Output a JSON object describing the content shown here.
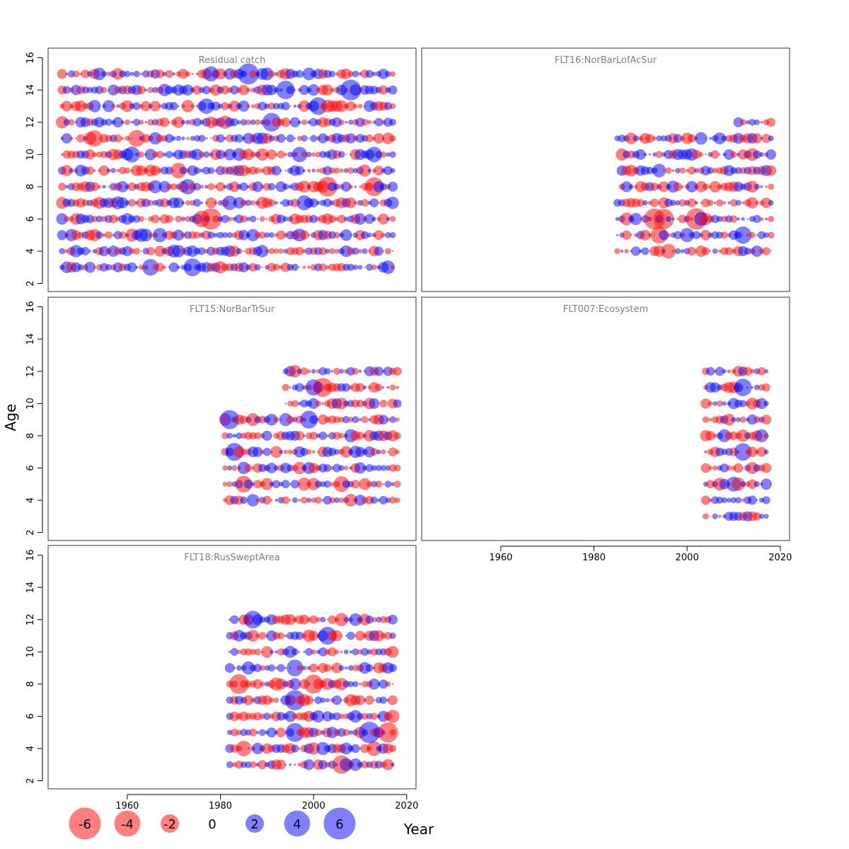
{
  "colors": {
    "positive": "#0000ff",
    "negative": "#ff0000",
    "bubble_opacity": 0.5,
    "panel_title": "#808080"
  },
  "chart_data": {
    "type": "scatter",
    "subtype": "bubble",
    "xlabel": "Year",
    "ylabel": "Age",
    "xlim": [
      1943,
      2022
    ],
    "ylim": [
      1.5,
      16.6
    ],
    "x_ticks": [
      1960,
      1980,
      2000,
      2020
    ],
    "y_ticks": [
      2,
      4,
      6,
      8,
      10,
      12,
      14,
      16
    ],
    "grid": false,
    "legend": {
      "placement": "bottom-left",
      "values": [
        -6,
        -4,
        -2,
        0,
        2,
        4,
        6
      ],
      "labels": [
        "-6",
        "-4",
        "-2",
        "0",
        "2",
        "4",
        "6"
      ]
    },
    "panels": [
      {
        "title": "Residual catch",
        "year_range": [
          1946,
          2017
        ],
        "age_rows": [
          {
            "age": 3,
            "from": 1946,
            "to": 2017
          },
          {
            "age": 4,
            "from": 1946,
            "to": 2017
          },
          {
            "age": 5,
            "from": 1946,
            "to": 2017
          },
          {
            "age": 6,
            "from": 1946,
            "to": 2017
          },
          {
            "age": 7,
            "from": 1946,
            "to": 2017
          },
          {
            "age": 8,
            "from": 1946,
            "to": 2017
          },
          {
            "age": 9,
            "from": 1946,
            "to": 2017
          },
          {
            "age": 10,
            "from": 1946,
            "to": 2017
          },
          {
            "age": 11,
            "from": 1946,
            "to": 2017
          },
          {
            "age": 12,
            "from": 1946,
            "to": 2017
          },
          {
            "age": 13,
            "from": 1946,
            "to": 2017
          },
          {
            "age": 14,
            "from": 1946,
            "to": 2017
          },
          {
            "age": 15,
            "from": 1946,
            "to": 2017
          }
        ]
      },
      {
        "title": "FLT16:NorBarLofAcSur",
        "year_range": [
          1985,
          2018
        ],
        "age_rows": [
          {
            "age": 4,
            "from": 1985,
            "to": 2018
          },
          {
            "age": 5,
            "from": 1985,
            "to": 2018
          },
          {
            "age": 6,
            "from": 1985,
            "to": 2018
          },
          {
            "age": 7,
            "from": 1985,
            "to": 2018
          },
          {
            "age": 8,
            "from": 1986,
            "to": 2018
          },
          {
            "age": 9,
            "from": 1986,
            "to": 2018
          },
          {
            "age": 10,
            "from": 1986,
            "to": 2018
          },
          {
            "age": 11,
            "from": 1985,
            "to": 2018
          },
          {
            "age": 12,
            "from": 2011,
            "to": 2018
          }
        ]
      },
      {
        "title": "FLT15:NorBarTrSur",
        "year_range": [
          1981,
          2018
        ],
        "age_rows": [
          {
            "age": 4,
            "from": 1981,
            "to": 2018
          },
          {
            "age": 5,
            "from": 1981,
            "to": 2018
          },
          {
            "age": 6,
            "from": 1981,
            "to": 2018
          },
          {
            "age": 7,
            "from": 1981,
            "to": 2018
          },
          {
            "age": 8,
            "from": 1981,
            "to": 2018
          },
          {
            "age": 9,
            "from": 1981,
            "to": 2018
          },
          {
            "age": 10,
            "from": 1994,
            "to": 2018
          },
          {
            "age": 11,
            "from": 1994,
            "to": 2018
          },
          {
            "age": 12,
            "from": 1994,
            "to": 2018
          }
        ]
      },
      {
        "title": "FLT007:Ecosystem",
        "year_range": [
          2004,
          2017
        ],
        "age_rows": [
          {
            "age": 3,
            "from": 2004,
            "to": 2017
          },
          {
            "age": 4,
            "from": 2004,
            "to": 2017
          },
          {
            "age": 5,
            "from": 2004,
            "to": 2017
          },
          {
            "age": 6,
            "from": 2004,
            "to": 2017
          },
          {
            "age": 7,
            "from": 2004,
            "to": 2017
          },
          {
            "age": 8,
            "from": 2004,
            "to": 2017
          },
          {
            "age": 9,
            "from": 2004,
            "to": 2017
          },
          {
            "age": 10,
            "from": 2004,
            "to": 2017
          },
          {
            "age": 11,
            "from": 2004,
            "to": 2017
          },
          {
            "age": 12,
            "from": 2004,
            "to": 2017
          }
        ]
      },
      {
        "title": "FLT18:RusSweptArea",
        "year_range": [
          1982,
          2017
        ],
        "age_rows": [
          {
            "age": 3,
            "from": 1982,
            "to": 2017
          },
          {
            "age": 4,
            "from": 1982,
            "to": 2017
          },
          {
            "age": 5,
            "from": 1982,
            "to": 2017
          },
          {
            "age": 6,
            "from": 1982,
            "to": 2017
          },
          {
            "age": 7,
            "from": 1982,
            "to": 2017
          },
          {
            "age": 8,
            "from": 1982,
            "to": 2017
          },
          {
            "age": 9,
            "from": 1982,
            "to": 2017
          },
          {
            "age": 10,
            "from": 1982,
            "to": 2017
          },
          {
            "age": 11,
            "from": 1982,
            "to": 2017
          },
          {
            "age": 12,
            "from": 1982,
            "to": 2017
          }
        ]
      }
    ]
  }
}
